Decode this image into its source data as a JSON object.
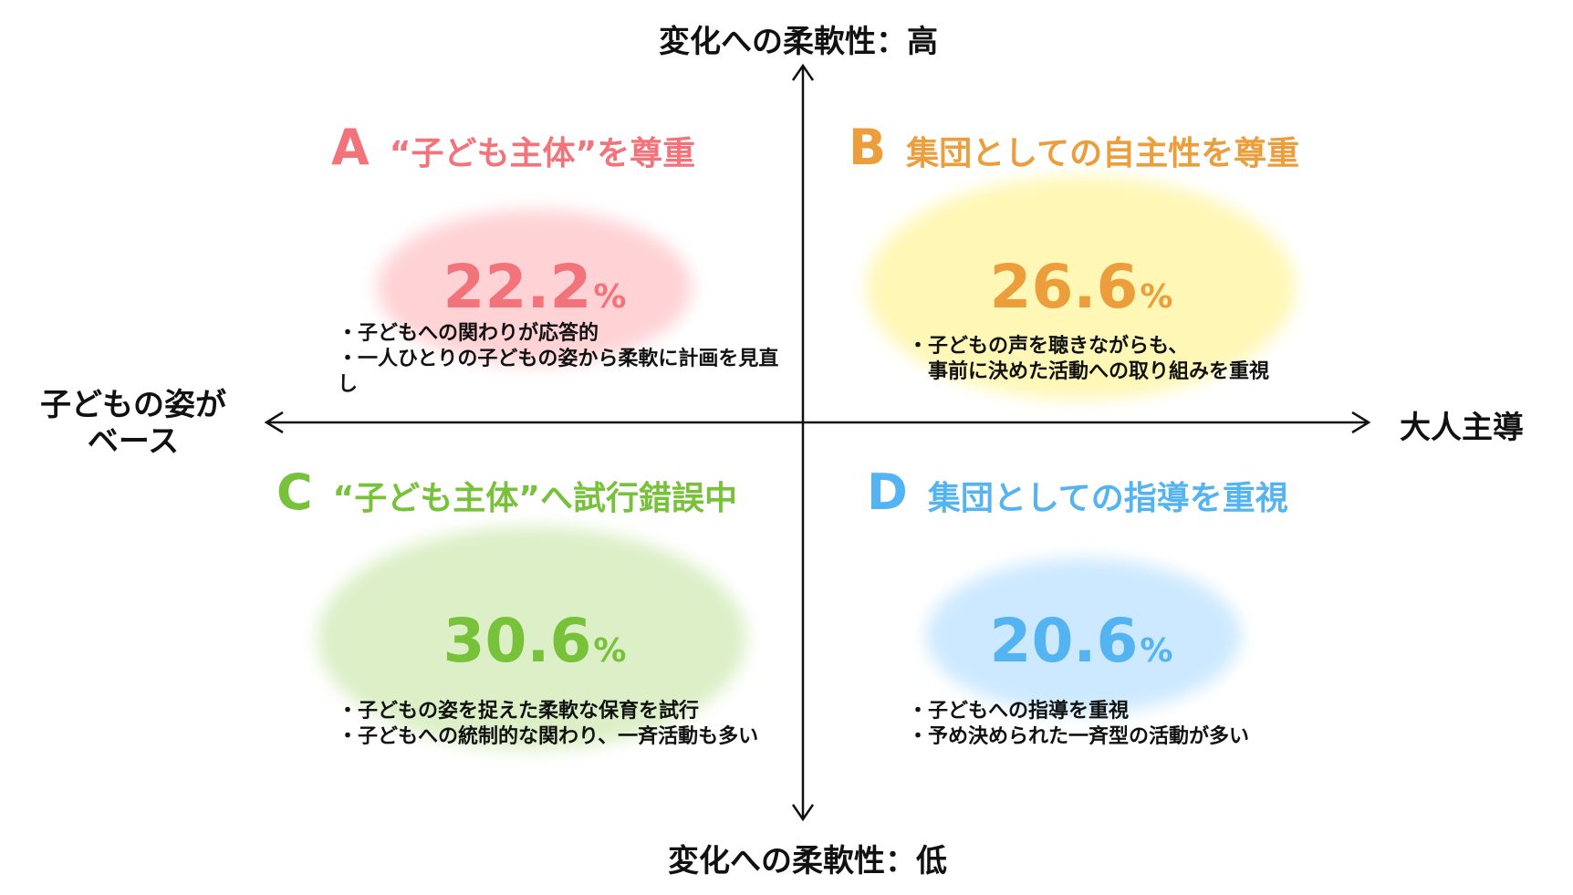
{
  "axes": {
    "top": "変化への柔軟性：高",
    "bottom": "変化への柔軟性：低",
    "left_line1": "子どもの姿が",
    "left_line2": "ベース",
    "right": "大人主導"
  },
  "quadrants": [
    {
      "letter": "A",
      "title": "“子ども主体”を尊重",
      "percent": "22.2",
      "percent_value": 22.2,
      "unit": "%",
      "color": "#f2737a",
      "blob_color": "#ffd3d6",
      "bullets": [
        "・子どもへの関わりが応答的",
        "・一人ひとりの子どもの姿から柔軟に計画を見直",
        "し"
      ]
    },
    {
      "letter": "B",
      "title": "集団としての自主性を尊重",
      "percent": "26.6",
      "percent_value": 26.6,
      "unit": "%",
      "color": "#ec9e3c",
      "blob_color": "#fff7b6",
      "bullets": [
        "・子どもの声を聴きながらも、",
        "　事前に決めた活動への取り組みを重視"
      ]
    },
    {
      "letter": "C",
      "title": "“子ども主体”へ試行錯誤中",
      "percent": "30.6",
      "percent_value": 30.6,
      "unit": "%",
      "color": "#77c13b",
      "blob_color": "#dcefc7",
      "bullets": [
        "・子どもの姿を捉えた柔軟な保育を試行",
        "・子どもへの統制的な関わり、一斉活動も多い"
      ]
    },
    {
      "letter": "D",
      "title": "集団としての指導を重視",
      "percent": "20.6",
      "percent_value": 20.6,
      "unit": "%",
      "color": "#54b3f1",
      "blob_color": "#cde9ff",
      "bullets": [
        "・子どもへの指導を重視",
        "・予め決められた一斉型の活動が多い"
      ]
    }
  ]
}
